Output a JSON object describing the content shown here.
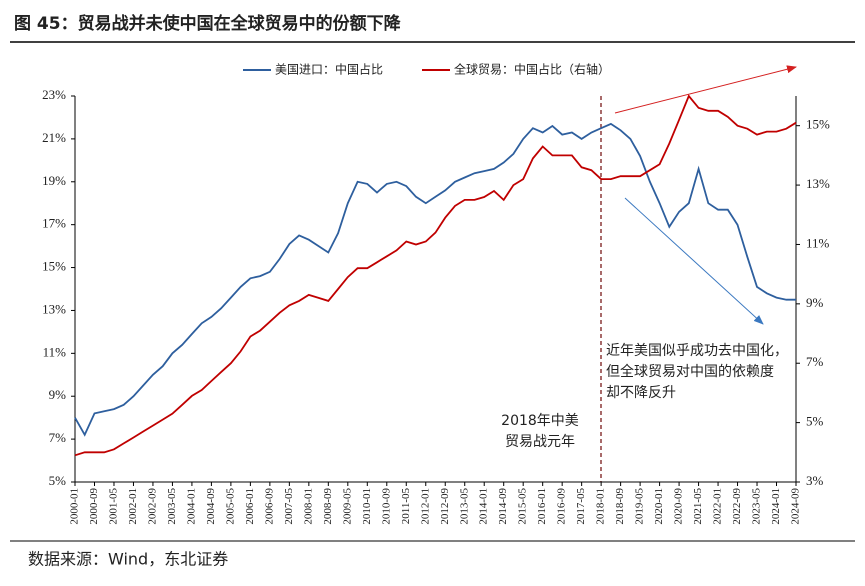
{
  "chart_data": {
    "type": "line",
    "title": "图 45：贸易战并未使中国在全球贸易中的份额下降",
    "source": "数据来源：Wind，东北证券",
    "x": [
      "2000-01",
      null,
      "2000-09",
      null,
      "2001-05",
      null,
      "2002-01",
      null,
      "2002-09",
      null,
      "2003-05",
      null,
      "2004-01",
      null,
      "2004-09",
      null,
      "2005-05",
      null,
      "2006-01",
      null,
      "2006-09",
      null,
      "2007-05",
      null,
      "2008-01",
      null,
      "2008-09",
      null,
      "2009-05",
      null,
      "2010-01",
      null,
      "2010-09",
      null,
      "2011-05",
      null,
      "2012-01",
      null,
      "2012-09",
      null,
      "2013-05",
      null,
      "2014-01",
      null,
      "2014-09",
      null,
      "2015-05",
      null,
      "2016-01",
      null,
      "2016-09",
      null,
      "2017-05",
      null,
      "2018-01",
      null,
      "2018-09",
      null,
      "2019-05",
      null,
      "2020-01",
      null,
      "2020-09",
      null,
      "2021-05",
      null,
      "2022-01",
      null,
      "2022-09",
      null,
      "2023-05",
      null,
      "2024-01",
      null,
      "2024-09"
    ],
    "series": [
      {
        "name": "美国进口：中国占比",
        "color": "#2e5f9e",
        "values": [
          8.0,
          7.2,
          8.2,
          8.3,
          8.4,
          8.6,
          9.0,
          9.5,
          10.0,
          10.4,
          11.0,
          11.4,
          11.9,
          12.4,
          12.7,
          13.1,
          13.6,
          14.1,
          14.5,
          14.6,
          14.8,
          15.4,
          16.1,
          16.5,
          16.3,
          16.0,
          15.7,
          16.6,
          18.0,
          19.0,
          18.9,
          18.5,
          18.9,
          19.0,
          18.8,
          18.3,
          18.0,
          18.3,
          18.6,
          19.0,
          19.2,
          19.4,
          19.5,
          19.6,
          19.9,
          20.3,
          21.0,
          21.5,
          21.3,
          21.6,
          21.2,
          21.3,
          21.0,
          21.3,
          21.5,
          21.7,
          21.4,
          21.0,
          20.2,
          19.0,
          18.0,
          16.9,
          17.6,
          18.0,
          19.6,
          18.0,
          17.7,
          17.7,
          17.0,
          15.5,
          14.1,
          13.8,
          13.6,
          13.5,
          13.5
        ]
      },
      {
        "name": "全球贸易：中国占比（右轴）",
        "color": "#c00000",
        "axis": "y2",
        "values": [
          3.9,
          4.0,
          4.0,
          4.0,
          4.1,
          4.3,
          4.5,
          4.7,
          4.9,
          5.1,
          5.3,
          5.6,
          5.9,
          6.1,
          6.4,
          6.7,
          7.0,
          7.4,
          7.9,
          8.1,
          8.4,
          8.7,
          8.95,
          9.1,
          9.3,
          9.2,
          9.1,
          9.5,
          9.9,
          10.2,
          10.2,
          10.4,
          10.6,
          10.8,
          11.1,
          11.0,
          11.1,
          11.4,
          11.9,
          12.3,
          12.5,
          12.5,
          12.6,
          12.8,
          12.5,
          13.0,
          13.2,
          13.9,
          14.3,
          14.0,
          14.0,
          14.0,
          13.6,
          13.5,
          13.2,
          13.2,
          13.3,
          13.3,
          13.3,
          13.5,
          13.7,
          14.4,
          15.2,
          16.0,
          15.6,
          15.5,
          15.5,
          15.3,
          15.0,
          14.9,
          14.7,
          14.8,
          14.8,
          14.9,
          15.1
        ]
      }
    ],
    "ylim": [
      5,
      23
    ],
    "yticks": [
      {
        "value": 5,
        "label": "5%"
      },
      {
        "value": 7,
        "label": "7%"
      },
      {
        "value": 9,
        "label": "9%"
      },
      {
        "value": 11,
        "label": "11%"
      },
      {
        "value": 13,
        "label": "13%"
      },
      {
        "value": 15,
        "label": "15%"
      },
      {
        "value": 17,
        "label": "17%"
      },
      {
        "value": 19,
        "label": "19%"
      },
      {
        "value": 21,
        "label": "21%"
      },
      {
        "value": 23,
        "label": "23%"
      }
    ],
    "y2lim": [
      3,
      16
    ],
    "y2ticks": [
      {
        "value": 3,
        "label": "3%"
      },
      {
        "value": 5,
        "label": "5%"
      },
      {
        "value": 7,
        "label": "7%"
      },
      {
        "value": 9,
        "label": "9%"
      },
      {
        "value": 11,
        "label": "11%"
      },
      {
        "value": 13,
        "label": "13%"
      },
      {
        "value": 15,
        "label": "15%"
      }
    ],
    "annotations": [
      [
        "2018年中美",
        "贸易战元年"
      ],
      [
        "近年美国似乎成功去中国化，",
        "但全球贸易对中国的依赖度",
        "却不降反升"
      ]
    ]
  }
}
